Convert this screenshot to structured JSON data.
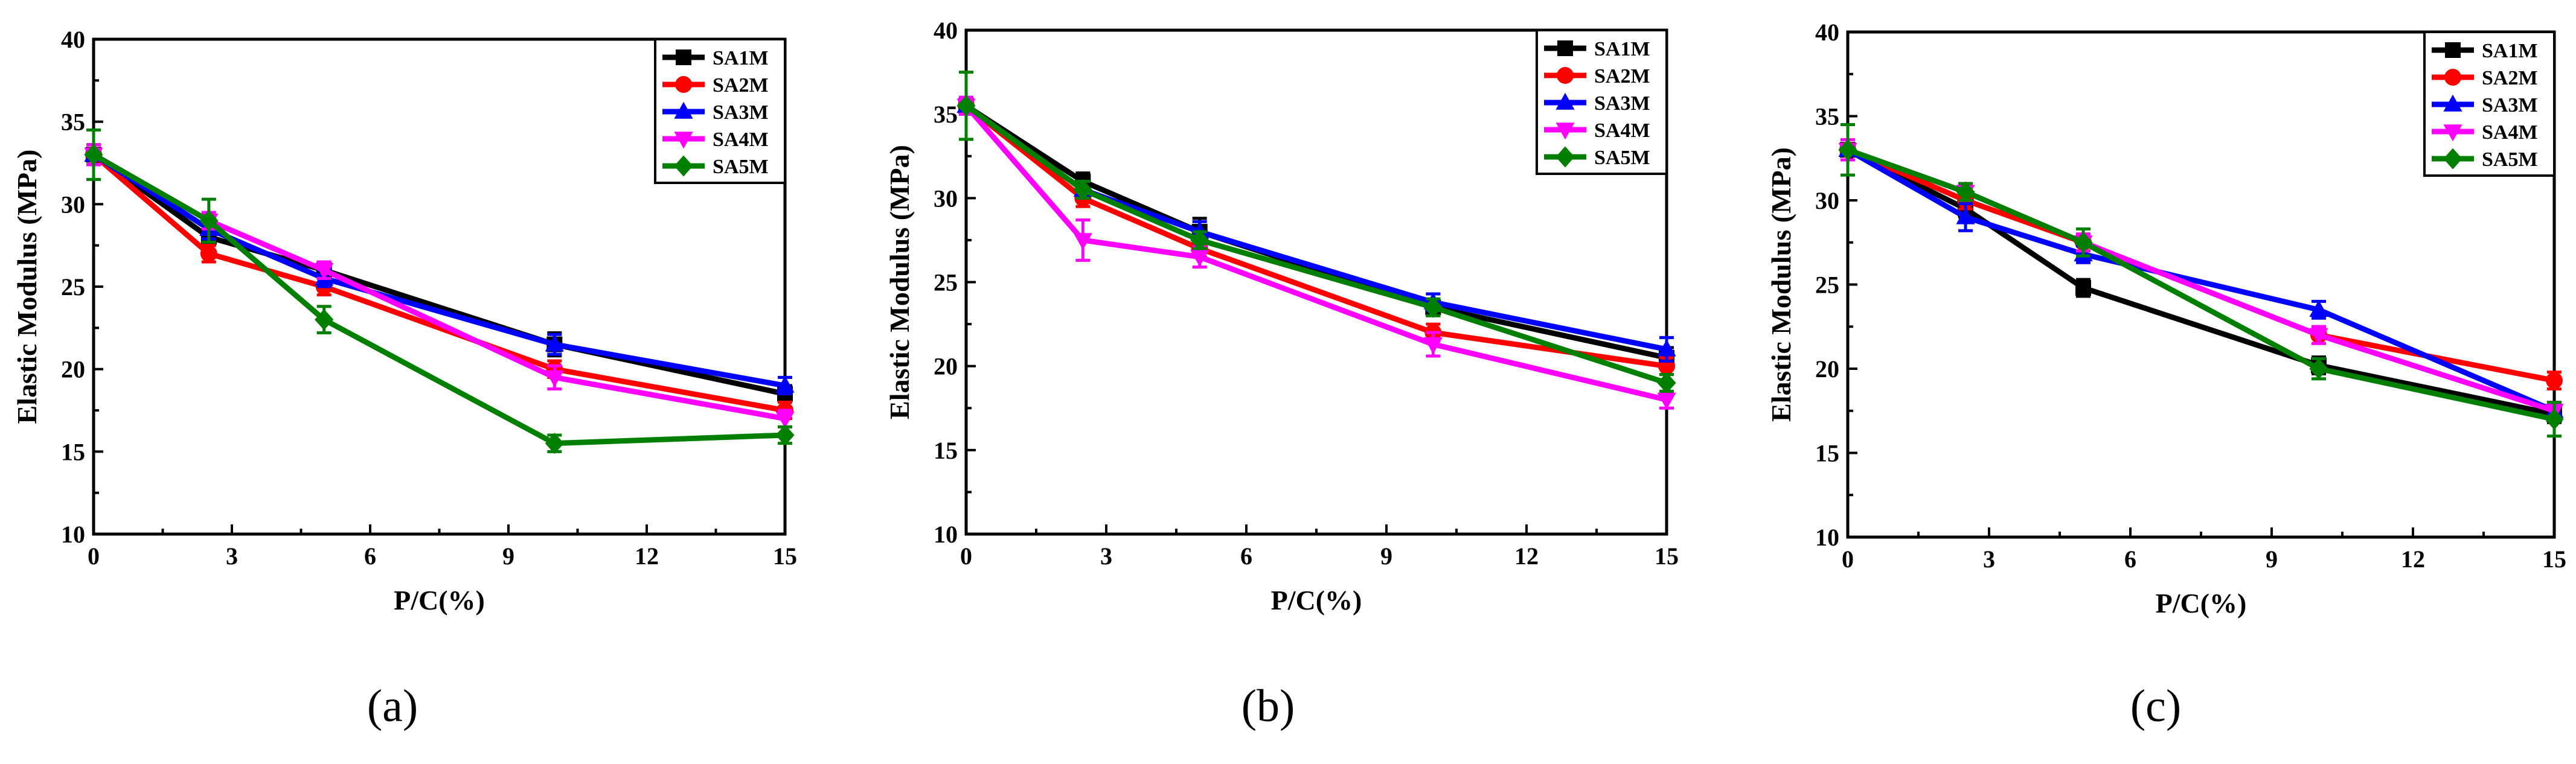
{
  "figure": {
    "panel_labels": [
      "(a)",
      "(b)",
      "(c)"
    ]
  },
  "colors": {
    "SA1M": "#000000",
    "SA2M": "#ff0000",
    "SA3M": "#0000ff",
    "SA4M": "#ff00ff",
    "SA5M": "#007f00"
  },
  "chart_data": [
    {
      "type": "line",
      "panel": "(a)",
      "title": "",
      "xlabel": "P/C(%)",
      "ylabel": "Elastic Modulus (MPa)",
      "xlim": [
        0,
        15
      ],
      "ylim": [
        10,
        40
      ],
      "xticks": [
        "0",
        "3",
        "6",
        "9",
        "12",
        "15"
      ],
      "yticks": [
        "10",
        "15",
        "20",
        "25",
        "30",
        "35",
        "40"
      ],
      "legend_position": "top-right",
      "x": [
        0,
        2.5,
        5,
        10,
        15
      ],
      "series": [
        {
          "name": "SA1M",
          "marker": "square",
          "values": [
            33.0,
            28.0,
            26.0,
            21.5,
            18.5
          ],
          "errors": [
            0.6,
            0.5,
            0.5,
            0.7,
            0.5
          ]
        },
        {
          "name": "SA2M",
          "marker": "circle",
          "values": [
            33.0,
            27.0,
            25.0,
            20.0,
            17.5
          ],
          "errors": [
            0.6,
            0.5,
            0.5,
            0.5,
            0.5
          ]
        },
        {
          "name": "SA3M",
          "marker": "triangle-up",
          "values": [
            33.0,
            28.5,
            25.5,
            21.5,
            19.0
          ],
          "errors": [
            0.6,
            0.6,
            0.5,
            0.6,
            0.5
          ]
        },
        {
          "name": "SA4M",
          "marker": "triangle-down",
          "values": [
            33.0,
            29.0,
            26.0,
            19.5,
            17.0
          ],
          "errors": [
            0.6,
            0.5,
            0.5,
            0.7,
            0.5
          ]
        },
        {
          "name": "SA5M",
          "marker": "diamond",
          "values": [
            33.0,
            29.0,
            23.0,
            15.5,
            16.0
          ],
          "errors": [
            1.5,
            1.3,
            0.8,
            0.5,
            0.5
          ]
        }
      ]
    },
    {
      "type": "line",
      "panel": "(b)",
      "title": "",
      "xlabel": "P/C(%)",
      "ylabel": "Elastic Modulus (MPa)",
      "xlim": [
        0,
        15
      ],
      "ylim": [
        10,
        40
      ],
      "xticks": [
        "0",
        "3",
        "6",
        "9",
        "12",
        "15"
      ],
      "yticks": [
        "10",
        "15",
        "20",
        "25",
        "30",
        "35",
        "40"
      ],
      "legend_position": "top-right",
      "x": [
        0,
        2.5,
        5,
        10,
        15
      ],
      "series": [
        {
          "name": "SA1M",
          "marker": "square",
          "values": [
            35.5,
            31.0,
            28.0,
            23.5,
            20.5
          ],
          "errors": [
            0.5,
            0.5,
            0.8,
            0.5,
            0.6
          ]
        },
        {
          "name": "SA2M",
          "marker": "circle",
          "values": [
            35.5,
            30.0,
            27.0,
            22.0,
            20.0
          ],
          "errors": [
            0.5,
            0.5,
            0.5,
            0.5,
            0.5
          ]
        },
        {
          "name": "SA3M",
          "marker": "triangle-up",
          "values": [
            35.5,
            30.5,
            28.0,
            23.8,
            21.0
          ],
          "errors": [
            0.5,
            0.5,
            0.6,
            0.5,
            0.7
          ]
        },
        {
          "name": "SA4M",
          "marker": "triangle-down",
          "values": [
            35.5,
            27.5,
            26.5,
            21.3,
            18.0
          ],
          "errors": [
            0.5,
            1.2,
            0.6,
            0.7,
            0.5
          ]
        },
        {
          "name": "SA5M",
          "marker": "diamond",
          "values": [
            35.5,
            30.5,
            27.5,
            23.5,
            19.0
          ],
          "errors": [
            2.0,
            0.5,
            0.5,
            0.5,
            0.5
          ]
        }
      ]
    },
    {
      "type": "line",
      "panel": "(c)",
      "title": "",
      "xlabel": "P/C(%)",
      "ylabel": "Elastic Modulus (MPa)",
      "xlim": [
        0,
        15
      ],
      "ylim": [
        10,
        40
      ],
      "xticks": [
        "0",
        "3",
        "6",
        "9",
        "12",
        "15"
      ],
      "yticks": [
        "10",
        "15",
        "20",
        "25",
        "30",
        "35",
        "40"
      ],
      "legend_position": "top-right",
      "x": [
        0,
        2.5,
        5,
        10,
        15
      ],
      "series": [
        {
          "name": "SA1M",
          "marker": "square",
          "values": [
            33.0,
            29.5,
            24.8,
            20.2,
            17.3
          ],
          "errors": [
            0.6,
            0.5,
            0.5,
            0.5,
            0.5
          ]
        },
        {
          "name": "SA2M",
          "marker": "circle",
          "values": [
            33.0,
            30.0,
            27.5,
            22.0,
            19.3
          ],
          "errors": [
            0.6,
            0.5,
            0.5,
            0.5,
            0.5
          ]
        },
        {
          "name": "SA3M",
          "marker": "triangle-up",
          "values": [
            33.0,
            29.0,
            26.8,
            23.5,
            17.5
          ],
          "errors": [
            0.6,
            0.8,
            0.5,
            0.5,
            0.5
          ]
        },
        {
          "name": "SA4M",
          "marker": "triangle-down",
          "values": [
            33.0,
            30.5,
            27.5,
            22.0,
            17.5
          ],
          "errors": [
            0.6,
            0.5,
            0.5,
            0.5,
            0.5
          ]
        },
        {
          "name": "SA5M",
          "marker": "diamond",
          "values": [
            33.0,
            30.5,
            27.5,
            20.0,
            17.0
          ],
          "errors": [
            1.5,
            0.5,
            0.8,
            0.6,
            1.0
          ]
        }
      ]
    }
  ]
}
